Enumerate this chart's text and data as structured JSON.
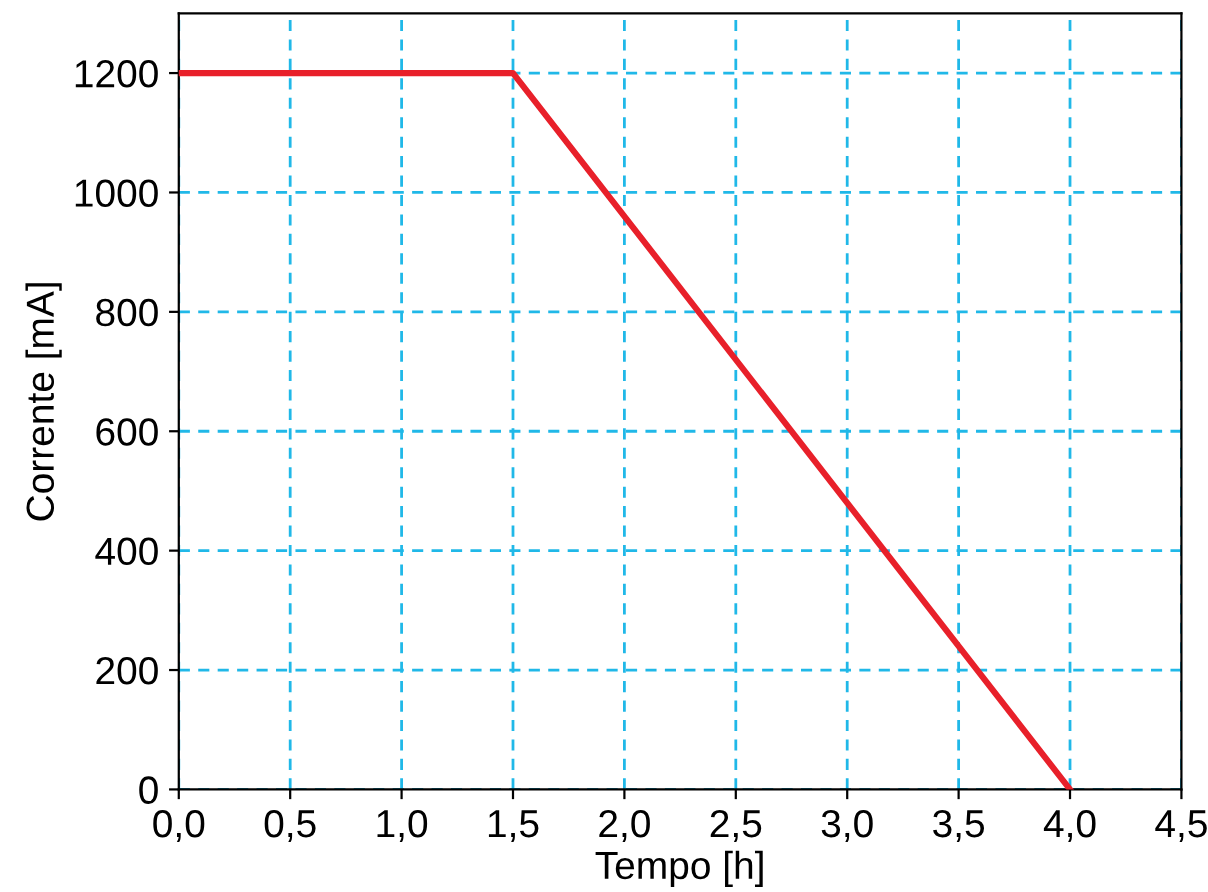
{
  "chart_data": {
    "type": "line",
    "xlabel": "Tempo [h]",
    "ylabel": "Corrente [mA]",
    "series": [
      {
        "x": [
          0,
          1.5,
          4
        ],
        "values": [
          1200,
          1200,
          0
        ],
        "color": "#e8202a"
      }
    ],
    "xlim": [
      0,
      4.5
    ],
    "ylim": [
      0,
      1300
    ],
    "xticks": [
      {
        "value": 0,
        "label": "0,0"
      },
      {
        "value": 0.5,
        "label": "0,5"
      },
      {
        "value": 1,
        "label": "1,0"
      },
      {
        "value": 1.5,
        "label": "1,5"
      },
      {
        "value": 2,
        "label": "2,0"
      },
      {
        "value": 2.5,
        "label": "2,5"
      },
      {
        "value": 3,
        "label": "3,0"
      },
      {
        "value": 3.5,
        "label": "3,5"
      },
      {
        "value": 4,
        "label": "4,0"
      },
      {
        "value": 4.5,
        "label": "4,5"
      }
    ],
    "yticks": [
      0,
      200,
      400,
      600,
      800,
      1000,
      1200
    ],
    "grid": true,
    "line_style": "solid",
    "marker": "none",
    "legend": false
  }
}
